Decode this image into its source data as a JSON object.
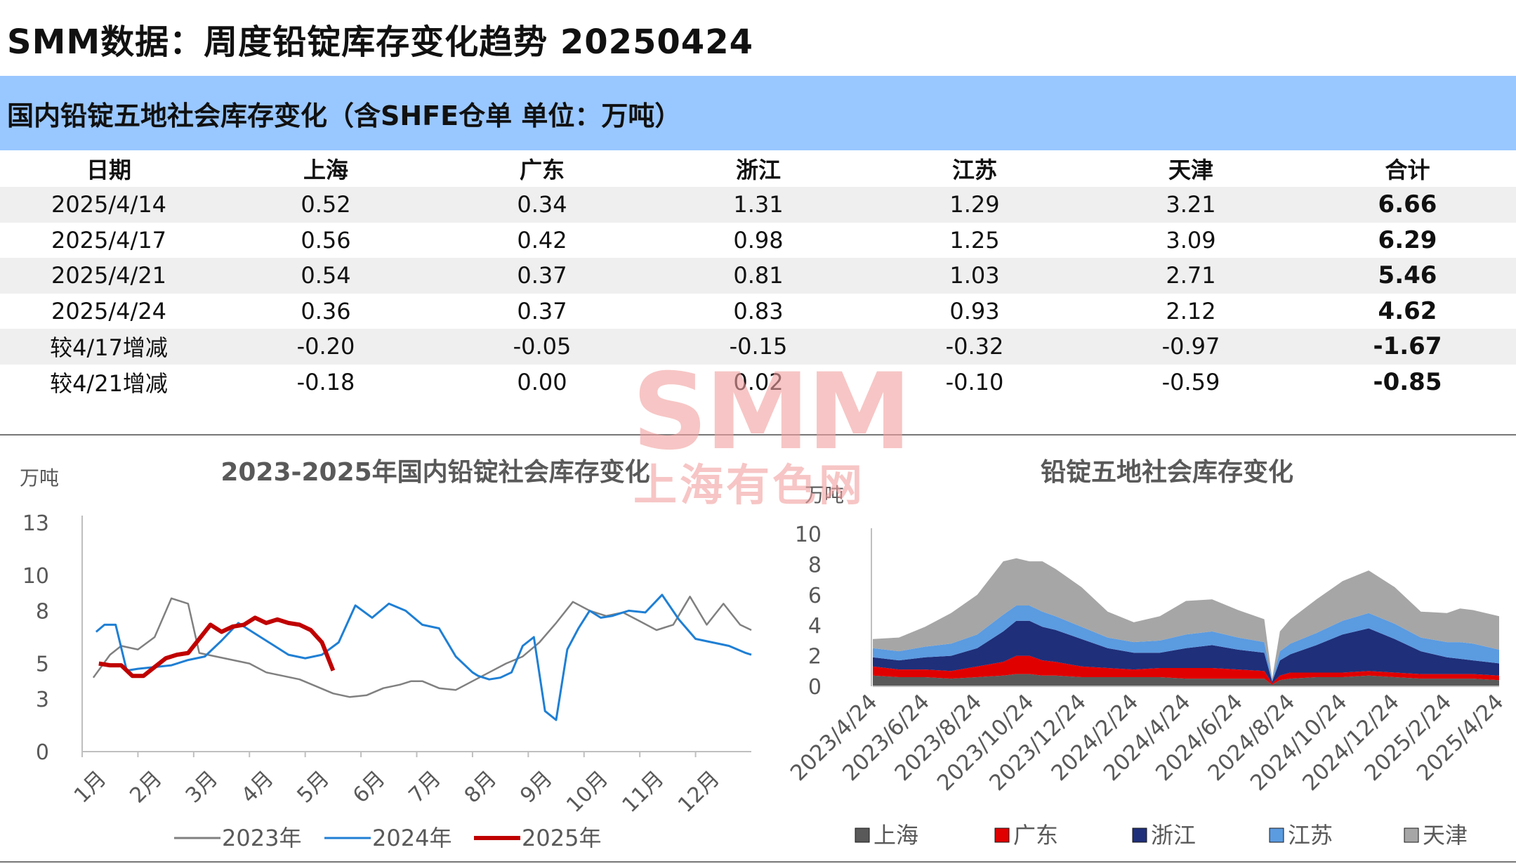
{
  "page_title": "SMM数据：周度铅锭库存变化趋势 20250424",
  "section_title": "国内铅锭五地社会库存变化（含SHFE仓单 单位：万吨）",
  "table": {
    "headers": [
      "日期",
      "上海",
      "广东",
      "浙江",
      "江苏",
      "天津",
      "合计"
    ],
    "rows": [
      [
        "2025/4/14",
        "0.52",
        "0.34",
        "1.31",
        "1.29",
        "3.21",
        "6.66"
      ],
      [
        "2025/4/17",
        "0.56",
        "0.42",
        "0.98",
        "1.25",
        "3.09",
        "6.29"
      ],
      [
        "2025/4/21",
        "0.54",
        "0.37",
        "0.81",
        "1.03",
        "2.71",
        "5.46"
      ],
      [
        "2025/4/24",
        "0.36",
        "0.37",
        "0.83",
        "0.93",
        "2.12",
        "4.62"
      ],
      [
        "较4/17增减",
        "-0.20",
        "-0.05",
        "-0.15",
        "-0.32",
        "-0.97",
        "-1.67"
      ],
      [
        "较4/21增减",
        "-0.18",
        "0.00",
        "0.02",
        "-0.10",
        "-0.59",
        "-0.85"
      ]
    ]
  },
  "watermark": {
    "big": "SMM",
    "small": "上海有色网"
  },
  "colors": {
    "y2023": "#808080",
    "y2024": "#1f7fd4",
    "y2025": "#c00000",
    "shanghai": "#595959",
    "guangdong": "#e00000",
    "zhejiang": "#1f2f7a",
    "jiangsu": "#5b9be0",
    "tianjin": "#a6a6a6"
  },
  "chart_data": [
    {
      "type": "line",
      "title": "2023-2025年国内铅锭社会库存变化",
      "ylabel": "万吨",
      "ylim": [
        0,
        13
      ],
      "yticks": [
        0,
        3,
        5,
        8,
        10,
        13
      ],
      "categories": [
        "1月",
        "2月",
        "3月",
        "4月",
        "5月",
        "6月",
        "7月",
        "8月",
        "9月",
        "10月",
        "11月",
        "12月"
      ],
      "x_unit": "month",
      "xlim": [
        1,
        13
      ],
      "legend": "bottom",
      "series": [
        {
          "name": "2023年",
          "x": [
            1.2,
            1.5,
            1.7,
            2.0,
            2.3,
            2.6,
            2.9,
            3.1,
            3.4,
            3.7,
            4.0,
            4.3,
            4.6,
            4.9,
            5.2,
            5.5,
            5.8,
            6.1,
            6.4,
            6.7,
            6.9,
            7.1,
            7.4,
            7.7,
            8.0,
            8.3,
            8.6,
            8.9,
            9.2,
            9.5,
            9.8,
            10.1,
            10.4,
            10.7,
            11.0,
            11.3,
            11.6,
            11.9,
            12.2,
            12.5,
            12.8,
            13.0
          ],
          "values": [
            4.2,
            5.5,
            6.0,
            5.8,
            6.5,
            8.7,
            8.4,
            5.6,
            5.4,
            5.2,
            5.0,
            4.5,
            4.3,
            4.1,
            3.7,
            3.3,
            3.1,
            3.2,
            3.6,
            3.8,
            4.0,
            4.0,
            3.6,
            3.5,
            4.0,
            4.5,
            5.0,
            5.4,
            6.2,
            7.3,
            8.5,
            8.0,
            7.7,
            7.9,
            7.4,
            6.9,
            7.2,
            8.8,
            7.2,
            8.4,
            7.2,
            6.9
          ]
        },
        {
          "name": "2024年",
          "x": [
            1.25,
            1.4,
            1.6,
            1.8,
            2.0,
            2.3,
            2.6,
            2.9,
            3.2,
            3.5,
            3.8,
            4.1,
            4.4,
            4.7,
            5.0,
            5.3,
            5.6,
            5.9,
            6.2,
            6.5,
            6.8,
            7.1,
            7.4,
            7.7,
            8.0,
            8.1,
            8.3,
            8.5,
            8.7,
            8.9,
            9.1,
            9.3,
            9.5,
            9.7,
            9.9,
            10.1,
            10.3,
            10.5,
            10.8,
            11.1,
            11.4,
            11.7,
            12.0,
            12.3,
            12.6,
            12.9,
            13.0
          ],
          "values": [
            6.8,
            7.2,
            7.2,
            4.6,
            4.7,
            4.8,
            4.9,
            5.2,
            5.4,
            6.3,
            7.3,
            6.7,
            6.1,
            5.5,
            5.3,
            5.5,
            6.2,
            8.3,
            7.6,
            8.4,
            8.0,
            7.2,
            7.0,
            5.4,
            4.5,
            4.3,
            4.1,
            4.2,
            4.5,
            6.0,
            6.5,
            2.3,
            1.8,
            5.8,
            7.0,
            8.0,
            7.6,
            7.7,
            8.0,
            7.9,
            8.9,
            7.5,
            6.4,
            6.2,
            6.0,
            5.6,
            5.5
          ]
        },
        {
          "name": "2025年",
          "x": [
            1.3,
            1.5,
            1.7,
            1.9,
            2.1,
            2.3,
            2.5,
            2.7,
            2.9,
            3.1,
            3.3,
            3.5,
            3.7,
            3.9,
            4.1,
            4.3,
            4.5,
            4.7,
            4.9,
            5.1,
            5.3,
            5.5
          ],
          "values": [
            5.0,
            4.9,
            4.9,
            4.3,
            4.3,
            4.8,
            5.3,
            5.5,
            5.6,
            6.4,
            7.2,
            6.8,
            7.1,
            7.2,
            7.6,
            7.3,
            7.5,
            7.3,
            7.2,
            6.9,
            6.2,
            4.6
          ]
        }
      ]
    },
    {
      "type": "area",
      "stacked": true,
      "title": "铅锭五地社会库存变化",
      "ylabel": "万吨",
      "ylim": [
        0,
        10
      ],
      "yticks": [
        0,
        2,
        4,
        6,
        8,
        10
      ],
      "x_tick_labels": [
        "2023/4/24",
        "2023/6/24",
        "2023/8/24",
        "2023/10/24",
        "2023/12/24",
        "2024/2/24",
        "2024/4/24",
        "2024/6/24",
        "2024/8/24",
        "2024/10/24",
        "2024/12/24",
        "2025/2/24",
        "2025/4/24"
      ],
      "x_unit": "months since 2023/4/24",
      "x": [
        0,
        1,
        2,
        3,
        4,
        5,
        5.5,
        6,
        6.5,
        7,
        8,
        9,
        10,
        11,
        12,
        13,
        14,
        15,
        15.3,
        15.6,
        16,
        17,
        18,
        19,
        20,
        21,
        22,
        22.5,
        23,
        24
      ],
      "legend": "bottom",
      "series": [
        {
          "name": "上海",
          "values": [
            0.7,
            0.6,
            0.6,
            0.5,
            0.6,
            0.7,
            0.8,
            0.8,
            0.7,
            0.7,
            0.6,
            0.6,
            0.6,
            0.6,
            0.5,
            0.5,
            0.5,
            0.5,
            0.1,
            0.4,
            0.5,
            0.6,
            0.6,
            0.7,
            0.6,
            0.5,
            0.5,
            0.5,
            0.5,
            0.4
          ]
        },
        {
          "name": "广东",
          "values": [
            0.6,
            0.5,
            0.5,
            0.5,
            0.7,
            0.9,
            1.2,
            1.2,
            1.0,
            0.9,
            0.7,
            0.6,
            0.5,
            0.6,
            0.7,
            0.7,
            0.6,
            0.5,
            0.1,
            0.3,
            0.4,
            0.3,
            0.3,
            0.3,
            0.3,
            0.3,
            0.3,
            0.3,
            0.3,
            0.3
          ]
        },
        {
          "name": "浙江",
          "values": [
            0.6,
            0.6,
            0.8,
            1.0,
            1.2,
            2.0,
            2.3,
            2.3,
            2.2,
            2.1,
            1.8,
            1.3,
            1.1,
            1.0,
            1.3,
            1.5,
            1.3,
            1.2,
            0.1,
            1.0,
            1.2,
            1.8,
            2.5,
            2.8,
            2.2,
            1.5,
            1.1,
            1.0,
            0.9,
            0.8
          ]
        },
        {
          "name": "江苏",
          "values": [
            0.6,
            0.6,
            0.7,
            0.8,
            0.9,
            1.1,
            1.0,
            1.0,
            1.0,
            0.9,
            0.8,
            0.7,
            0.7,
            0.8,
            0.9,
            0.9,
            0.8,
            0.7,
            0.1,
            0.6,
            0.7,
            0.8,
            0.9,
            1.0,
            1.0,
            0.9,
            1.0,
            1.1,
            1.1,
            0.9
          ]
        },
        {
          "name": "天津",
          "values": [
            0.6,
            0.9,
            1.3,
            2.0,
            2.6,
            3.5,
            3.1,
            2.9,
            3.3,
            3.1,
            2.6,
            1.7,
            1.3,
            1.6,
            2.2,
            2.1,
            1.8,
            1.5,
            0.1,
            1.3,
            1.6,
            2.2,
            2.6,
            2.8,
            2.4,
            1.7,
            1.9,
            2.2,
            2.2,
            2.2
          ]
        }
      ]
    }
  ]
}
